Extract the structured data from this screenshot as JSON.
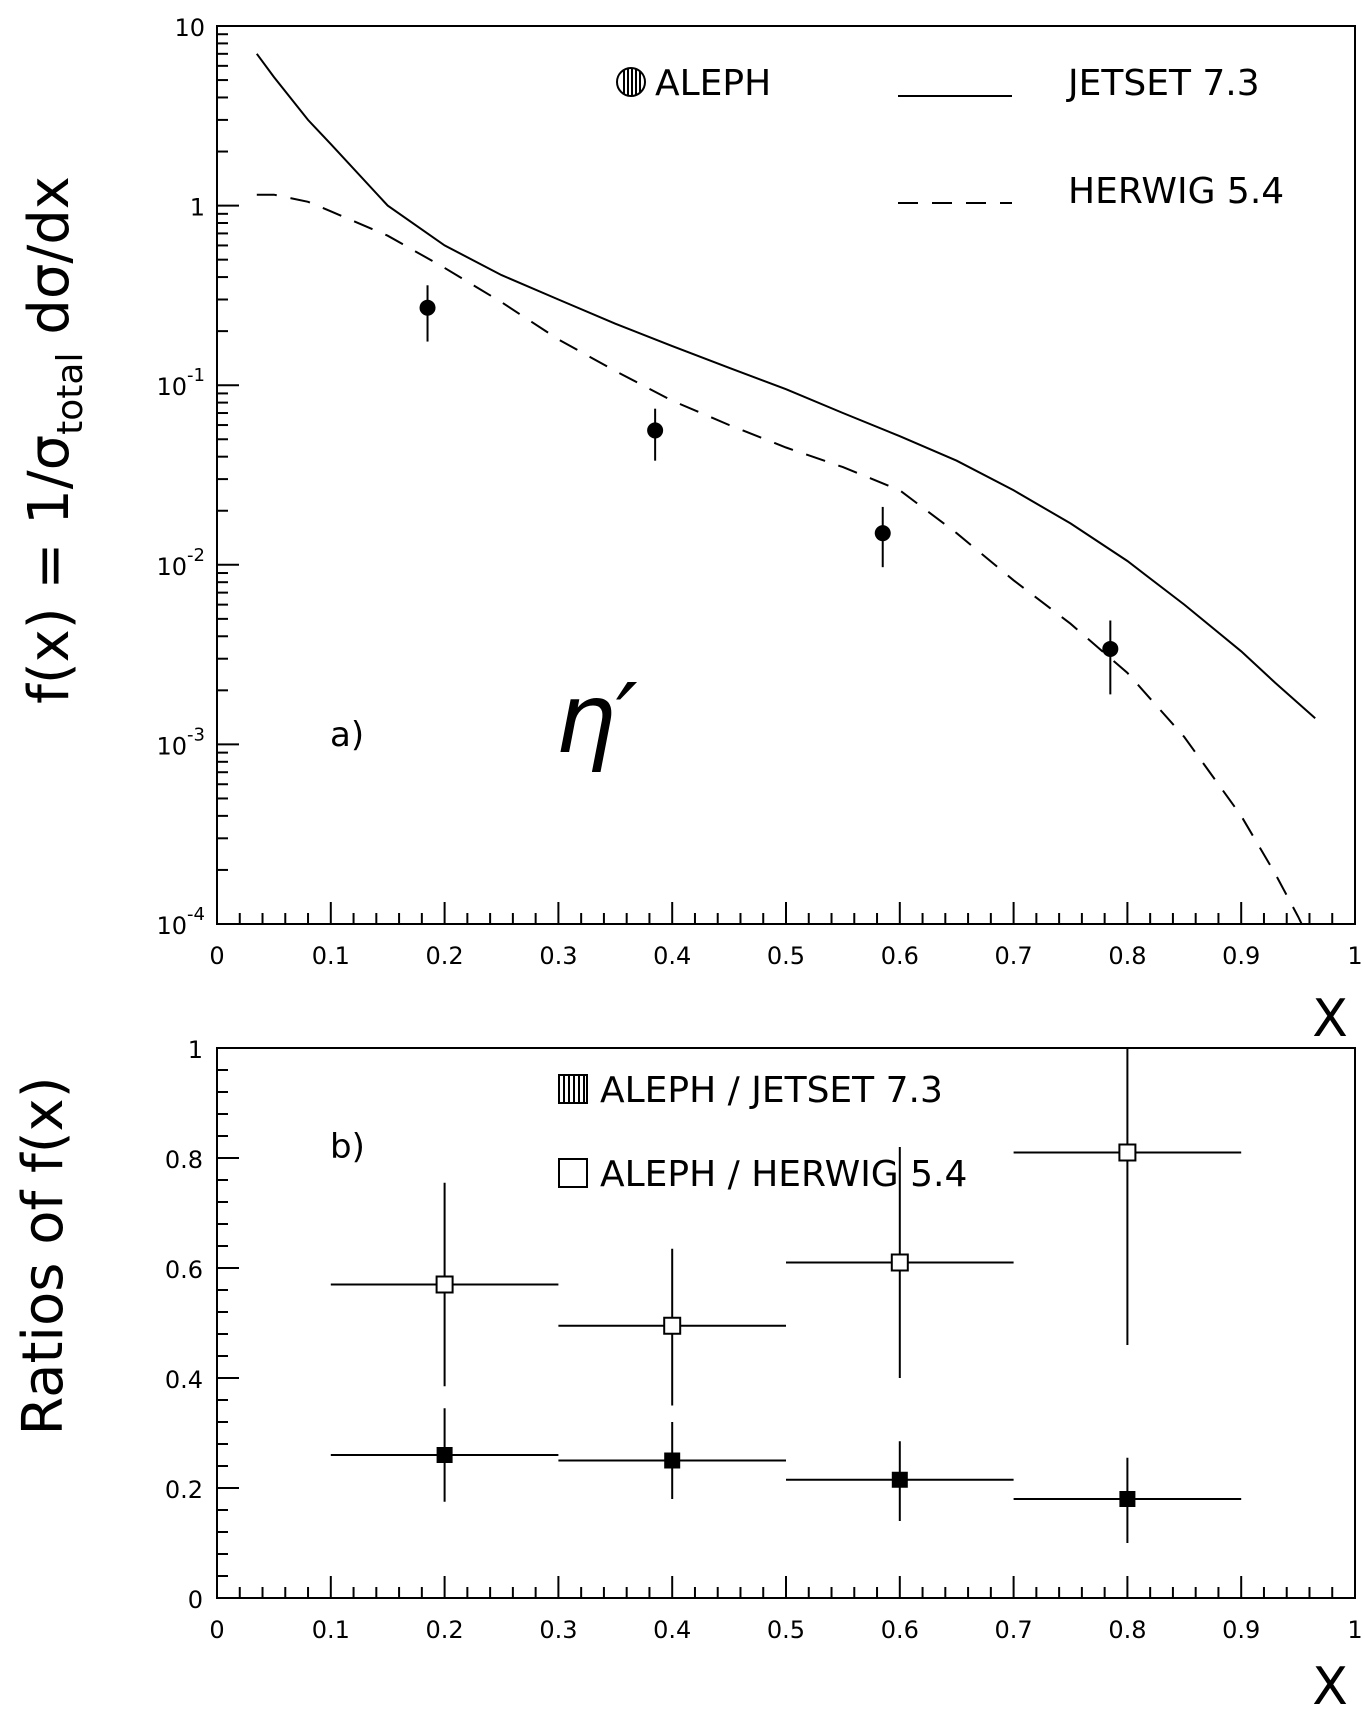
{
  "chart_data": [
    {
      "panel": "a)",
      "type": "line",
      "scale": "log",
      "xlim": [
        0,
        1
      ],
      "ylim": [
        0.0001,
        10
      ],
      "xlabel": "X",
      "ylabel_parts": {
        "before": "f(x) = 1/σ",
        "sub": "total",
        "after": " dσ/dx"
      },
      "x_ticks": [
        "0",
        "0.1",
        "0.2",
        "0.3",
        "0.4",
        "0.5",
        "0.6",
        "0.7",
        "0.8",
        "0.9",
        "1"
      ],
      "y_ticks": [
        {
          "value": 10,
          "base": "10",
          "exp": ""
        },
        {
          "value": 1,
          "base": "1",
          "exp": ""
        },
        {
          "value": 0.1,
          "base": "10",
          "exp": "-1"
        },
        {
          "value": 0.01,
          "base": "10",
          "exp": "-2"
        },
        {
          "value": 0.001,
          "base": "10",
          "exp": "-3"
        },
        {
          "value": 0.0001,
          "base": "10",
          "exp": "-4"
        }
      ],
      "annotation": "η′",
      "legend": [
        {
          "label": "ALEPH",
          "marker": "circle"
        },
        {
          "label": "JETSET 7.3",
          "style": "solid"
        },
        {
          "label": "HERWIG 5.4",
          "style": "dashed"
        }
      ],
      "data_points": {
        "name": "ALEPH",
        "x": [
          0.185,
          0.385,
          0.585,
          0.785
        ],
        "y": [
          0.27,
          0.056,
          0.015,
          0.0034
        ],
        "y_low": [
          0.175,
          0.038,
          0.0097,
          0.0019
        ],
        "y_high": [
          0.36,
          0.074,
          0.021,
          0.0049
        ]
      },
      "series": [
        {
          "name": "JETSET 7.3",
          "style": "solid",
          "x": [
            0.035,
            0.05,
            0.08,
            0.1,
            0.15,
            0.2,
            0.25,
            0.3,
            0.35,
            0.4,
            0.45,
            0.5,
            0.55,
            0.6,
            0.65,
            0.7,
            0.75,
            0.8,
            0.85,
            0.9,
            0.93,
            0.965
          ],
          "y": [
            7.0,
            5.2,
            3.0,
            2.2,
            1.0,
            0.6,
            0.41,
            0.3,
            0.22,
            0.165,
            0.125,
            0.095,
            0.07,
            0.052,
            0.038,
            0.026,
            0.017,
            0.0105,
            0.006,
            0.0033,
            0.0022,
            0.0014
          ]
        },
        {
          "name": "HERWIG 5.4",
          "style": "dashed",
          "x": [
            0.035,
            0.05,
            0.08,
            0.1,
            0.15,
            0.2,
            0.25,
            0.3,
            0.35,
            0.4,
            0.45,
            0.5,
            0.55,
            0.6,
            0.65,
            0.7,
            0.75,
            0.8,
            0.85,
            0.9,
            0.93,
            0.95,
            0.965
          ],
          "y": [
            1.15,
            1.15,
            1.05,
            0.93,
            0.68,
            0.45,
            0.29,
            0.18,
            0.12,
            0.082,
            0.06,
            0.045,
            0.035,
            0.026,
            0.015,
            0.0082,
            0.0047,
            0.0025,
            0.0011,
            0.0004,
            0.00019,
            0.00011,
            7e-05
          ]
        }
      ]
    },
    {
      "panel": "b)",
      "type": "scatter",
      "xlim": [
        0,
        1
      ],
      "ylim": [
        0,
        1
      ],
      "xlabel": "X",
      "ylabel": "Ratios of f(x)",
      "x_ticks": [
        "0",
        "0.1",
        "0.2",
        "0.3",
        "0.4",
        "0.5",
        "0.6",
        "0.7",
        "0.8",
        "0.9",
        "1"
      ],
      "y_ticks": [
        "0",
        "0.2",
        "0.4",
        "0.6",
        "0.8",
        "1"
      ],
      "series": [
        {
          "name": "ALEPH / JETSET 7.3",
          "marker": "filled-square",
          "x": [
            0.2,
            0.4,
            0.6,
            0.8
          ],
          "y": [
            0.26,
            0.25,
            0.215,
            0.18
          ],
          "x_low": [
            0.1,
            0.3,
            0.5,
            0.7
          ],
          "x_high": [
            0.3,
            0.5,
            0.7,
            0.9
          ],
          "y_low": [
            0.175,
            0.18,
            0.14,
            0.1
          ],
          "y_high": [
            0.345,
            0.32,
            0.285,
            0.255
          ]
        },
        {
          "name": "ALEPH / HERWIG 5.4",
          "marker": "open-square",
          "x": [
            0.2,
            0.4,
            0.6,
            0.8
          ],
          "y": [
            0.57,
            0.495,
            0.61,
            0.81
          ],
          "x_low": [
            0.1,
            0.3,
            0.5,
            0.7
          ],
          "x_high": [
            0.3,
            0.5,
            0.7,
            0.9
          ],
          "y_low": [
            0.385,
            0.35,
            0.4,
            0.46
          ],
          "y_high": [
            0.755,
            0.635,
            0.82,
            1.0
          ]
        }
      ]
    }
  ]
}
